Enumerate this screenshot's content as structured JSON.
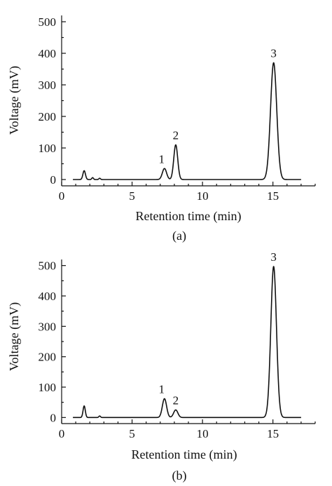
{
  "colors": {
    "line": "#111111",
    "background": "#ffffff"
  },
  "chart_data": [
    {
      "type": "line",
      "panel_label": "(a)",
      "xlabel": "Retention time (min)",
      "ylabel": "Voltage (mV)",
      "xlim": [
        0,
        18
      ],
      "ylim": [
        -20,
        520
      ],
      "xticks": [
        0,
        5,
        10,
        15
      ],
      "yticks": [
        0,
        100,
        200,
        300,
        400,
        500
      ],
      "grid": false,
      "baseline": 0,
      "small_peaks": [
        {
          "x": 1.6,
          "y": 28,
          "width": 0.09
        },
        {
          "x": 2.2,
          "y": 6,
          "width": 0.06
        },
        {
          "x": 2.7,
          "y": 4,
          "width": 0.06
        }
      ],
      "peaks": [
        {
          "label": "1",
          "x": 7.3,
          "y": 35,
          "width": 0.15
        },
        {
          "label": "2",
          "x": 8.1,
          "y": 110,
          "width": 0.14
        },
        {
          "label": "3",
          "x": 15.05,
          "y": 370,
          "width": 0.22
        }
      ]
    },
    {
      "type": "line",
      "panel_label": "(b)",
      "xlabel": "Retention time (min)",
      "ylabel": "Voltage (mV)",
      "xlim": [
        0,
        18
      ],
      "ylim": [
        -20,
        520
      ],
      "xticks": [
        0,
        5,
        10,
        15
      ],
      "yticks": [
        0,
        100,
        200,
        300,
        400,
        500
      ],
      "grid": false,
      "baseline": 0,
      "small_peaks": [
        {
          "x": 1.6,
          "y": 38,
          "width": 0.08
        },
        {
          "x": 2.7,
          "y": 5,
          "width": 0.06
        }
      ],
      "peaks": [
        {
          "label": "1",
          "x": 7.3,
          "y": 62,
          "width": 0.15
        },
        {
          "label": "2",
          "x": 8.1,
          "y": 25,
          "width": 0.15
        },
        {
          "label": "3",
          "x": 15.05,
          "y": 497,
          "width": 0.2
        }
      ]
    }
  ]
}
